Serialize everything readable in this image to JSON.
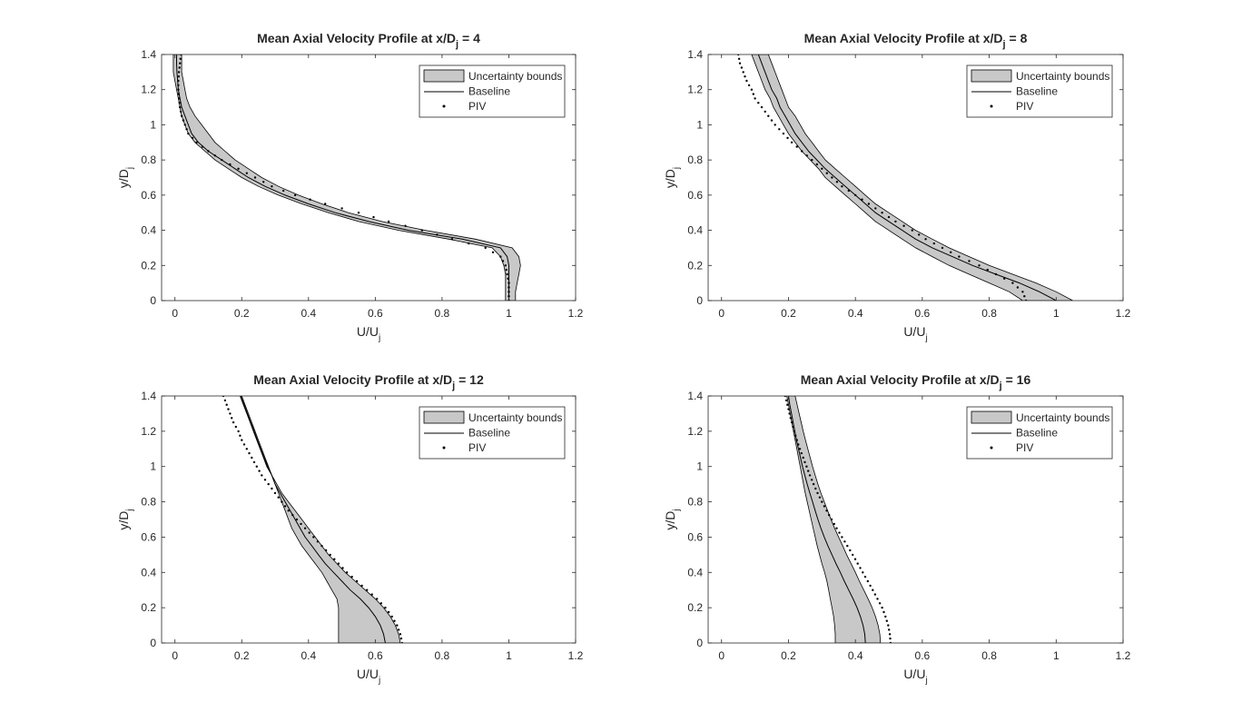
{
  "figure": {
    "colors": {
      "band_fill": "#c8c8c8",
      "band_edge": "#000000",
      "baseline": "#000000",
      "piv": "#000000",
      "axes": "#262626",
      "background": "#ffffff"
    }
  },
  "chart_data": [
    {
      "type": "line",
      "title_prefix": "Mean Axial Velocity Profile at x/D",
      "title_sub": "j",
      "title_suffix": " = 4",
      "xlabel_main": "U/U",
      "xlabel_sub": "j",
      "ylabel_main": "y/D",
      "ylabel_sub": "j",
      "xlim": [
        -0.04,
        1.2
      ],
      "ylim": [
        0,
        1.4
      ],
      "xticks": [
        0,
        0.2,
        0.4,
        0.6,
        0.8,
        1,
        1.2
      ],
      "yticks": [
        0,
        0.2,
        0.4,
        0.6,
        0.8,
        1,
        1.2,
        1.4
      ],
      "grid": false,
      "legend_position": "top-right",
      "legend": [
        "Uncertainty bounds",
        "Baseline",
        "PIV"
      ],
      "y": [
        0,
        0.05,
        0.1,
        0.15,
        0.2,
        0.25,
        0.3,
        0.35,
        0.4,
        0.45,
        0.5,
        0.55,
        0.6,
        0.65,
        0.7,
        0.75,
        0.8,
        0.85,
        0.9,
        0.95,
        1.0,
        1.05,
        1.1,
        1.15,
        1.2,
        1.25,
        1.3,
        1.35,
        1.4
      ],
      "series": [
        {
          "name": "Uncertainty bounds",
          "kind": "band",
          "lower": [
            0.99,
            0.99,
            0.99,
            0.99,
            0.985,
            0.975,
            0.95,
            0.82,
            0.67,
            0.55,
            0.46,
            0.38,
            0.31,
            0.25,
            0.2,
            0.16,
            0.12,
            0.09,
            0.06,
            0.04,
            0.03,
            0.02,
            0.015,
            0.01,
            0.005,
            0.0,
            -0.005,
            -0.005,
            -0.005
          ],
          "upper": [
            1.02,
            1.02,
            1.025,
            1.03,
            1.035,
            1.03,
            1.01,
            0.9,
            0.75,
            0.62,
            0.52,
            0.44,
            0.37,
            0.31,
            0.26,
            0.22,
            0.18,
            0.15,
            0.12,
            0.1,
            0.08,
            0.06,
            0.045,
            0.035,
            0.03,
            0.025,
            0.02,
            0.02,
            0.02
          ]
        },
        {
          "name": "Baseline",
          "kind": "line",
          "values": [
            1.0,
            1.0,
            1.0,
            1.0,
            1.0,
            0.995,
            0.975,
            0.86,
            0.7,
            0.58,
            0.48,
            0.4,
            0.33,
            0.27,
            0.22,
            0.18,
            0.14,
            0.1,
            0.07,
            0.05,
            0.04,
            0.03,
            0.02,
            0.015,
            0.01,
            0.008,
            0.006,
            0.005,
            0.005
          ]
        },
        {
          "name": "PIV",
          "kind": "points",
          "values": [
            1.0,
            1.0,
            1.0,
            0.995,
            0.99,
            0.975,
            0.93,
            0.83,
            0.74,
            0.64,
            0.55,
            0.45,
            0.36,
            0.29,
            0.24,
            0.19,
            0.14,
            0.1,
            0.065,
            0.04,
            0.03,
            0.02,
            0.015,
            0.012,
            0.01,
            0.01,
            0.012,
            0.015,
            0.018
          ]
        }
      ]
    },
    {
      "type": "line",
      "title_prefix": "Mean Axial Velocity Profile at x/D",
      "title_sub": "j",
      "title_suffix": " = 8",
      "xlabel_main": "U/U",
      "xlabel_sub": "j",
      "ylabel_main": "y/D",
      "ylabel_sub": "j",
      "xlim": [
        -0.04,
        1.2
      ],
      "ylim": [
        0,
        1.4
      ],
      "xticks": [
        0,
        0.2,
        0.4,
        0.6,
        0.8,
        1,
        1.2
      ],
      "yticks": [
        0,
        0.2,
        0.4,
        0.6,
        0.8,
        1,
        1.2,
        1.4
      ],
      "grid": false,
      "legend_position": "top-right",
      "legend": [
        "Uncertainty bounds",
        "Baseline",
        "PIV"
      ],
      "y": [
        0,
        0.05,
        0.1,
        0.15,
        0.2,
        0.25,
        0.3,
        0.35,
        0.4,
        0.45,
        0.5,
        0.55,
        0.6,
        0.65,
        0.7,
        0.75,
        0.8,
        0.85,
        0.9,
        0.95,
        1.0,
        1.05,
        1.1,
        1.15,
        1.2,
        1.25,
        1.3,
        1.35,
        1.4
      ],
      "series": [
        {
          "name": "Uncertainty bounds",
          "kind": "band",
          "lower": [
            0.9,
            0.86,
            0.8,
            0.74,
            0.68,
            0.63,
            0.58,
            0.54,
            0.5,
            0.46,
            0.43,
            0.4,
            0.37,
            0.34,
            0.31,
            0.29,
            0.265,
            0.24,
            0.22,
            0.2,
            0.185,
            0.17,
            0.155,
            0.145,
            0.13,
            0.12,
            0.11,
            0.1,
            0.09
          ],
          "upper": [
            1.05,
            1.0,
            0.94,
            0.87,
            0.8,
            0.74,
            0.68,
            0.63,
            0.58,
            0.54,
            0.5,
            0.46,
            0.43,
            0.4,
            0.37,
            0.34,
            0.31,
            0.29,
            0.27,
            0.25,
            0.235,
            0.22,
            0.2,
            0.19,
            0.18,
            0.17,
            0.16,
            0.15,
            0.14
          ]
        },
        {
          "name": "Baseline",
          "kind": "line",
          "values": [
            1.0,
            0.95,
            0.89,
            0.82,
            0.75,
            0.69,
            0.63,
            0.58,
            0.54,
            0.5,
            0.46,
            0.43,
            0.4,
            0.37,
            0.34,
            0.31,
            0.285,
            0.26,
            0.24,
            0.22,
            0.205,
            0.19,
            0.175,
            0.165,
            0.15,
            0.14,
            0.13,
            0.12,
            0.11
          ]
        },
        {
          "name": "PIV",
          "kind": "points",
          "values": [
            0.91,
            0.9,
            0.87,
            0.82,
            0.77,
            0.71,
            0.66,
            0.61,
            0.57,
            0.52,
            0.48,
            0.44,
            0.4,
            0.36,
            0.33,
            0.3,
            0.27,
            0.24,
            0.21,
            0.185,
            0.16,
            0.14,
            0.12,
            0.1,
            0.09,
            0.075,
            0.065,
            0.055,
            0.05
          ]
        }
      ]
    },
    {
      "type": "line",
      "title_prefix": "Mean Axial Velocity Profile at x/D",
      "title_sub": "j",
      "title_suffix": " = 12",
      "xlabel_main": "U/U",
      "xlabel_sub": "j",
      "ylabel_main": "y/D",
      "ylabel_sub": "j",
      "xlim": [
        -0.04,
        1.2
      ],
      "ylim": [
        0,
        1.4
      ],
      "xticks": [
        0,
        0.2,
        0.4,
        0.6,
        0.8,
        1,
        1.2
      ],
      "yticks": [
        0,
        0.2,
        0.4,
        0.6,
        0.8,
        1,
        1.2,
        1.4
      ],
      "grid": false,
      "legend_position": "top-right",
      "legend": [
        "Uncertainty bounds",
        "Baseline",
        "PIV"
      ],
      "y": [
        0,
        0.05,
        0.1,
        0.15,
        0.2,
        0.25,
        0.3,
        0.35,
        0.4,
        0.45,
        0.5,
        0.55,
        0.6,
        0.65,
        0.7,
        0.75,
        0.8,
        0.85,
        0.9,
        0.95,
        1.0,
        1.05,
        1.1,
        1.15,
        1.2,
        1.25,
        1.3,
        1.35,
        1.4
      ],
      "series": [
        {
          "name": "Uncertainty bounds",
          "kind": "band",
          "lower": [
            0.49,
            0.49,
            0.49,
            0.49,
            0.49,
            0.485,
            0.47,
            0.455,
            0.44,
            0.42,
            0.4,
            0.38,
            0.365,
            0.35,
            0.34,
            0.33,
            0.32,
            0.31,
            0.3,
            0.29,
            0.275,
            0.265,
            0.255,
            0.245,
            0.235,
            0.225,
            0.215,
            0.205,
            0.195
          ],
          "upper": [
            0.675,
            0.67,
            0.66,
            0.645,
            0.625,
            0.6,
            0.57,
            0.54,
            0.51,
            0.485,
            0.46,
            0.44,
            0.42,
            0.4,
            0.38,
            0.36,
            0.34,
            0.32,
            0.305,
            0.29,
            0.28,
            0.27,
            0.26,
            0.25,
            0.24,
            0.23,
            0.22,
            0.21,
            0.2
          ]
        },
        {
          "name": "Baseline",
          "kind": "line",
          "values": [
            0.63,
            0.625,
            0.615,
            0.6,
            0.58,
            0.555,
            0.525,
            0.5,
            0.475,
            0.45,
            0.43,
            0.41,
            0.39,
            0.375,
            0.36,
            0.345,
            0.33,
            0.315,
            0.3,
            0.29,
            0.278,
            0.267,
            0.257,
            0.247,
            0.237,
            0.227,
            0.217,
            0.207,
            0.197
          ]
        },
        {
          "name": "PIV",
          "kind": "points",
          "values": [
            0.68,
            0.675,
            0.665,
            0.65,
            0.63,
            0.605,
            0.575,
            0.545,
            0.515,
            0.49,
            0.465,
            0.44,
            0.415,
            0.39,
            0.365,
            0.34,
            0.32,
            0.3,
            0.28,
            0.26,
            0.245,
            0.23,
            0.215,
            0.2,
            0.19,
            0.175,
            0.165,
            0.155,
            0.145
          ]
        }
      ]
    },
    {
      "type": "line",
      "title_prefix": "Mean Axial Velocity Profile at x/D",
      "title_sub": "j",
      "title_suffix": " = 16",
      "xlabel_main": "U/U",
      "xlabel_sub": "j",
      "ylabel_main": "y/D",
      "ylabel_sub": "j",
      "xlim": [
        -0.04,
        1.2
      ],
      "ylim": [
        0,
        1.4
      ],
      "xticks": [
        0,
        0.2,
        0.4,
        0.6,
        0.8,
        1,
        1.2
      ],
      "yticks": [
        0,
        0.2,
        0.4,
        0.6,
        0.8,
        1,
        1.2,
        1.4
      ],
      "grid": false,
      "legend_position": "top-right",
      "legend": [
        "Uncertainty bounds",
        "Baseline",
        "PIV"
      ],
      "y": [
        0,
        0.05,
        0.1,
        0.15,
        0.2,
        0.25,
        0.3,
        0.35,
        0.4,
        0.45,
        0.5,
        0.55,
        0.6,
        0.65,
        0.7,
        0.75,
        0.8,
        0.85,
        0.9,
        0.95,
        1.0,
        1.05,
        1.1,
        1.15,
        1.2,
        1.25,
        1.3,
        1.35,
        1.4
      ],
      "series": [
        {
          "name": "Uncertainty bounds",
          "kind": "band",
          "lower": [
            0.34,
            0.34,
            0.338,
            0.335,
            0.33,
            0.325,
            0.32,
            0.315,
            0.308,
            0.3,
            0.293,
            0.286,
            0.28,
            0.274,
            0.268,
            0.262,
            0.256,
            0.25,
            0.245,
            0.24,
            0.235,
            0.23,
            0.225,
            0.22,
            0.215,
            0.21,
            0.205,
            0.2,
            0.195
          ],
          "upper": [
            0.475,
            0.473,
            0.468,
            0.46,
            0.45,
            0.438,
            0.425,
            0.412,
            0.4,
            0.387,
            0.374,
            0.362,
            0.35,
            0.338,
            0.327,
            0.317,
            0.307,
            0.297,
            0.288,
            0.28,
            0.272,
            0.265,
            0.258,
            0.251,
            0.244,
            0.238,
            0.232,
            0.226,
            0.22
          ]
        },
        {
          "name": "Baseline",
          "kind": "line",
          "values": [
            0.43,
            0.428,
            0.423,
            0.415,
            0.405,
            0.393,
            0.38,
            0.367,
            0.355,
            0.342,
            0.33,
            0.318,
            0.307,
            0.297,
            0.288,
            0.28,
            0.272,
            0.264,
            0.256,
            0.249,
            0.242,
            0.236,
            0.23,
            0.224,
            0.219,
            0.214,
            0.209,
            0.204,
            0.2
          ]
        },
        {
          "name": "PIV",
          "kind": "points",
          "values": [
            0.505,
            0.503,
            0.498,
            0.49,
            0.48,
            0.466,
            0.452,
            0.437,
            0.422,
            0.407,
            0.392,
            0.376,
            0.36,
            0.344,
            0.329,
            0.314,
            0.3,
            0.287,
            0.275,
            0.264,
            0.254,
            0.244,
            0.234,
            0.225,
            0.217,
            0.21,
            0.203,
            0.197,
            0.19
          ]
        }
      ]
    }
  ]
}
